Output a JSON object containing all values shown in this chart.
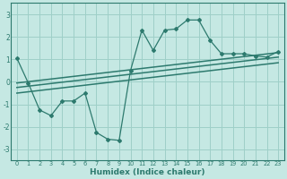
{
  "xlabel": "Humidex (Indice chaleur)",
  "bg_color": "#c5e8e3",
  "grid_color": "#9ecfc8",
  "line_color": "#2d7a6e",
  "xlim": [
    -0.5,
    23.5
  ],
  "ylim": [
    -3.5,
    3.5
  ],
  "xticks": [
    0,
    1,
    2,
    3,
    4,
    5,
    6,
    7,
    8,
    9,
    10,
    11,
    12,
    13,
    14,
    15,
    16,
    17,
    18,
    19,
    20,
    21,
    22,
    23
  ],
  "yticks": [
    -3,
    -2,
    -1,
    0,
    1,
    2,
    3
  ],
  "main_x": [
    0,
    1,
    2,
    3,
    4,
    5,
    6,
    7,
    8,
    9,
    10,
    11,
    12,
    13,
    14,
    15,
    16,
    17,
    18,
    19,
    20,
    21,
    22,
    23
  ],
  "main_y": [
    1.05,
    -0.05,
    -1.25,
    -1.5,
    -0.85,
    -0.85,
    -0.5,
    -2.25,
    -2.55,
    -2.6,
    0.5,
    2.3,
    1.4,
    2.3,
    2.35,
    2.75,
    2.75,
    1.85,
    1.25,
    1.25,
    1.25,
    1.15,
    1.1,
    1.35
  ],
  "trend1_x": [
    0,
    23
  ],
  "trend1_y": [
    -0.05,
    1.3
  ],
  "trend2_x": [
    0,
    23
  ],
  "trend2_y": [
    -0.25,
    1.1
  ],
  "trend3_x": [
    0,
    23
  ],
  "trend3_y": [
    -0.5,
    0.85
  ]
}
